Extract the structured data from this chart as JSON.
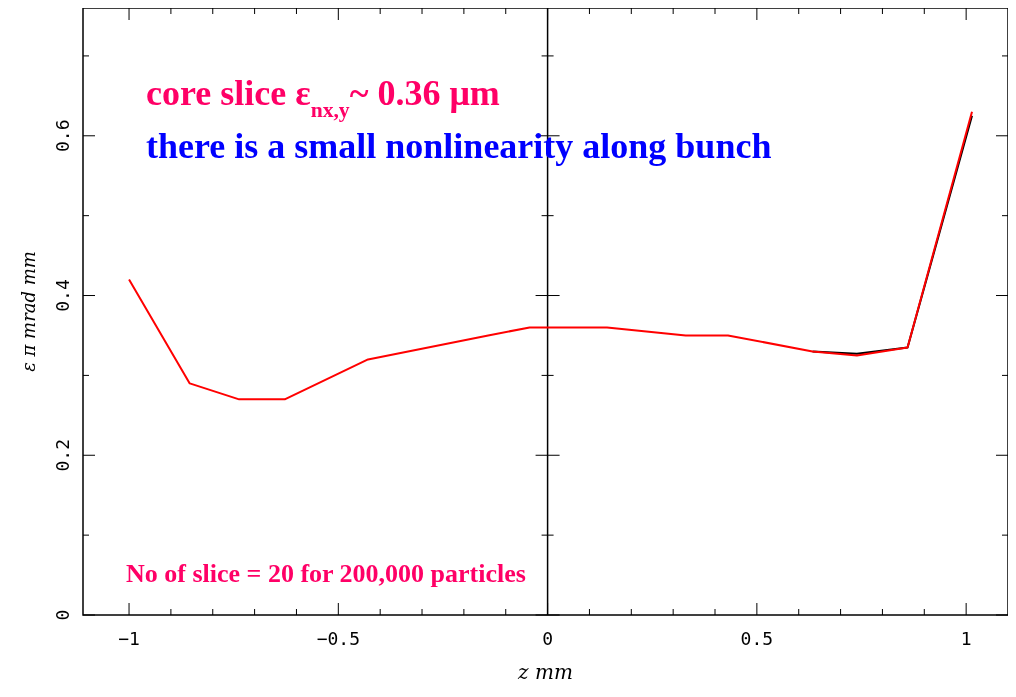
{
  "chart_data": {
    "type": "line",
    "xlabel": "z  mm",
    "ylabel": "ε  π  mrad  mm",
    "xlim": [
      -1.11,
      1.1
    ],
    "ylim": [
      0,
      0.76
    ],
    "xticks": [
      {
        "value": -1,
        "label": "−1"
      },
      {
        "value": -0.9,
        "label": null
      },
      {
        "value": -0.8,
        "label": null
      },
      {
        "value": -0.7,
        "label": null
      },
      {
        "value": -0.6,
        "label": null
      },
      {
        "value": -0.5,
        "label": "−0.5"
      },
      {
        "value": -0.4,
        "label": null
      },
      {
        "value": -0.3,
        "label": null
      },
      {
        "value": -0.2,
        "label": null
      },
      {
        "value": -0.1,
        "label": null
      },
      0,
      {
        "value": 0.1,
        "label": null
      },
      {
        "value": 0.2,
        "label": null
      },
      {
        "value": 0.3,
        "label": null
      },
      {
        "value": 0.4,
        "label": null
      },
      0.5,
      {
        "value": 0.6,
        "label": null
      },
      {
        "value": 0.7,
        "label": null
      },
      {
        "value": 0.8,
        "label": null
      },
      {
        "value": 0.9,
        "label": null
      },
      1
    ],
    "yticks": [
      0,
      {
        "value": 0.1,
        "label": null
      },
      0.2,
      {
        "value": 0.3,
        "label": null
      },
      0.4,
      {
        "value": 0.5,
        "label": null
      },
      0.6,
      {
        "value": 0.7,
        "label": null
      }
    ],
    "x": [
      -1,
      -0.855,
      -0.737,
      -0.628,
      -0.429,
      -0.142,
      -0.043,
      0.047,
      0.142,
      0.33,
      0.431,
      0.633,
      0.739,
      0.86,
      1.014
    ],
    "series": [
      {
        "color": "#000000",
        "values": [
          null,
          null,
          null,
          null,
          null,
          null,
          null,
          null,
          null,
          null,
          null,
          0.33,
          0.327,
          0.335,
          0.625
        ]
      },
      {
        "color": "#ff0000",
        "values": [
          0.42,
          0.29,
          0.27,
          0.27,
          0.32,
          0.35,
          0.36,
          0.36,
          0.36,
          0.35,
          0.35,
          0.33,
          0.325,
          0.335,
          0.63
        ]
      }
    ],
    "ref_lines": [
      {
        "axis": "x",
        "value": 0,
        "color": "#000000"
      }
    ],
    "annotations": [
      "core slice ε$_{nx,y}$~ 0.36 μm",
      "there is a small nonlinearity along bunch",
      "No of slice = 20 for 200,000 particles"
    ],
    "marker": "none",
    "line_style": "solid",
    "grid": false
  }
}
